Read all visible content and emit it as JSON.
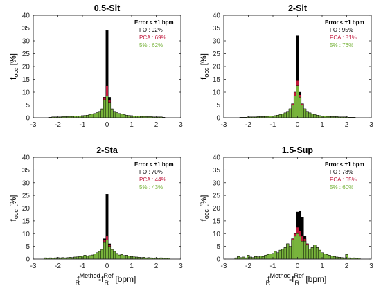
{
  "colors": {
    "FO": "#000000",
    "PCA": "#c0183c",
    "five": "#78b43c",
    "axis": "#262626"
  },
  "legend_header": "Error < ±1 bpm",
  "x_label": {
    "base": "f",
    "sub1": "R",
    "sup1": "Method",
    "sep": "-f",
    "sub2": "R",
    "sup2": "Ref",
    "unit": " [bpm]"
  },
  "y_label": {
    "base": "f",
    "sub": "occ",
    "unit": " [%]"
  },
  "chart_data": [
    {
      "type": "bar",
      "title": "0.5-Sit",
      "xlim": [
        -3,
        3
      ],
      "ylim": [
        0,
        40
      ],
      "xticks": [
        -3,
        -2,
        -1,
        0,
        1,
        2,
        3
      ],
      "yticks": [
        0,
        5,
        10,
        15,
        20,
        25,
        30,
        35,
        40
      ],
      "grid": false,
      "legend_position": "top-right",
      "legend": [
        {
          "name": "FO",
          "text": "FO : 92%"
        },
        {
          "name": "PCA",
          "text": "PCA : 69%"
        },
        {
          "name": "5%",
          "text": "5% : 62%"
        }
      ],
      "bin_width": 0.1,
      "bins": [
        [
          -2.3,
          0.2,
          0.2,
          0.2
        ],
        [
          -2.2,
          0.3,
          0.3,
          0.3
        ],
        [
          -2.1,
          0.3,
          0.3,
          0.3
        ],
        [
          -2.0,
          0.3,
          0.3,
          0.3
        ],
        [
          -1.9,
          0.3,
          0.3,
          0.3
        ],
        [
          -1.8,
          0.4,
          0.4,
          0.4
        ],
        [
          -1.7,
          0.4,
          0.4,
          0.4
        ],
        [
          -1.6,
          0.4,
          0.4,
          0.4
        ],
        [
          -1.5,
          0.5,
          0.5,
          0.5
        ],
        [
          -1.4,
          0.5,
          0.5,
          0.5
        ],
        [
          -1.3,
          0.6,
          0.6,
          0.6
        ],
        [
          -1.2,
          0.6,
          0.6,
          0.6
        ],
        [
          -1.1,
          0.7,
          0.7,
          0.7
        ],
        [
          -1.0,
          0.8,
          0.8,
          0.8
        ],
        [
          -0.9,
          0.9,
          0.9,
          0.9
        ],
        [
          -0.8,
          1.0,
          1.0,
          1.0
        ],
        [
          -0.7,
          1.2,
          1.2,
          1.2
        ],
        [
          -0.6,
          1.4,
          1.4,
          1.4
        ],
        [
          -0.5,
          1.7,
          1.7,
          1.7
        ],
        [
          -0.4,
          2.0,
          2.0,
          2.0
        ],
        [
          -0.3,
          2.5,
          2.5,
          2.5
        ],
        [
          -0.2,
          3.5,
          3.5,
          3.2
        ],
        [
          -0.1,
          8.0,
          8.0,
          7.0
        ],
        [
          0.0,
          34.0,
          12.5,
          8.5
        ],
        [
          0.1,
          8.0,
          7.0,
          6.0
        ],
        [
          0.2,
          3.5,
          3.5,
          3.2
        ],
        [
          0.3,
          2.5,
          2.5,
          2.5
        ],
        [
          0.4,
          2.0,
          2.0,
          2.0
        ],
        [
          0.5,
          1.7,
          1.7,
          1.7
        ],
        [
          0.6,
          1.4,
          1.4,
          1.4
        ],
        [
          0.7,
          1.2,
          1.2,
          1.2
        ],
        [
          0.8,
          1.0,
          1.0,
          1.0
        ],
        [
          0.9,
          0.9,
          0.9,
          0.9
        ],
        [
          1.0,
          0.8,
          0.8,
          0.8
        ],
        [
          1.1,
          0.7,
          0.7,
          0.7
        ],
        [
          1.2,
          0.6,
          0.6,
          0.6
        ],
        [
          1.3,
          0.6,
          0.6,
          0.6
        ],
        [
          1.4,
          0.5,
          0.5,
          0.5
        ],
        [
          1.5,
          0.5,
          0.5,
          0.5
        ],
        [
          1.6,
          0.4,
          0.4,
          0.4
        ],
        [
          1.7,
          0.4,
          0.4,
          0.4
        ],
        [
          1.8,
          0.4,
          0.4,
          0.4
        ],
        [
          1.9,
          0.3,
          0.3,
          0.3
        ],
        [
          2.0,
          0.3,
          0.3,
          0.3
        ],
        [
          2.1,
          0.3,
          0.3,
          0.3
        ],
        [
          2.2,
          0.3,
          0.3,
          0.3
        ],
        [
          2.3,
          0.2,
          0.2,
          0.2
        ]
      ]
    },
    {
      "type": "bar",
      "title": "2-Sit",
      "xlim": [
        -3,
        3
      ],
      "ylim": [
        0,
        40
      ],
      "xticks": [
        -3,
        -2,
        -1,
        0,
        1,
        2,
        3
      ],
      "yticks": [
        0,
        5,
        10,
        15,
        20,
        25,
        30,
        35,
        40
      ],
      "grid": false,
      "legend_position": "top-right",
      "legend": [
        {
          "name": "FO",
          "text": "FO : 95%"
        },
        {
          "name": "PCA",
          "text": "PCA : 81%"
        },
        {
          "name": "5%",
          "text": "5% : 76%"
        }
      ],
      "bin_width": 0.1,
      "bins": [
        [
          -2.3,
          0.2,
          0.2,
          0.2
        ],
        [
          -2.2,
          0.2,
          0.2,
          0.2
        ],
        [
          -2.1,
          0.2,
          0.2,
          0.2
        ],
        [
          -2.0,
          0.3,
          0.3,
          0.3
        ],
        [
          -1.9,
          0.3,
          0.3,
          0.3
        ],
        [
          -1.8,
          0.3,
          0.3,
          0.3
        ],
        [
          -1.7,
          0.3,
          0.3,
          0.3
        ],
        [
          -1.6,
          0.4,
          0.4,
          0.4
        ],
        [
          -1.5,
          0.4,
          0.4,
          0.4
        ],
        [
          -1.4,
          0.4,
          0.4,
          0.4
        ],
        [
          -1.3,
          0.5,
          0.5,
          0.5
        ],
        [
          -1.2,
          0.5,
          0.5,
          0.5
        ],
        [
          -1.1,
          0.6,
          0.6,
          0.6
        ],
        [
          -1.0,
          0.7,
          0.7,
          0.7
        ],
        [
          -0.9,
          0.8,
          0.8,
          0.8
        ],
        [
          -0.8,
          1.0,
          1.0,
          1.0
        ],
        [
          -0.7,
          1.2,
          1.2,
          1.2
        ],
        [
          -0.6,
          1.5,
          1.5,
          1.5
        ],
        [
          -0.5,
          1.9,
          1.9,
          1.9
        ],
        [
          -0.4,
          2.5,
          2.5,
          2.5
        ],
        [
          -0.3,
          3.5,
          3.5,
          3.5
        ],
        [
          -0.2,
          5.5,
          5.5,
          5.0
        ],
        [
          -0.1,
          10.0,
          10.0,
          8.5
        ],
        [
          0.0,
          32.0,
          14.5,
          12.5
        ],
        [
          0.1,
          10.0,
          9.0,
          8.0
        ],
        [
          0.2,
          5.5,
          5.5,
          5.0
        ],
        [
          0.3,
          3.5,
          3.5,
          3.5
        ],
        [
          0.4,
          2.5,
          2.5,
          2.5
        ],
        [
          0.5,
          1.9,
          1.9,
          1.9
        ],
        [
          0.6,
          1.5,
          1.5,
          1.5
        ],
        [
          0.7,
          1.2,
          1.2,
          1.2
        ],
        [
          0.8,
          1.0,
          1.0,
          1.0
        ],
        [
          0.9,
          0.8,
          0.8,
          0.8
        ],
        [
          1.0,
          0.7,
          0.7,
          0.7
        ],
        [
          1.1,
          0.6,
          0.6,
          0.6
        ],
        [
          1.2,
          0.5,
          0.5,
          0.5
        ],
        [
          1.3,
          0.5,
          0.5,
          0.5
        ],
        [
          1.4,
          0.4,
          0.4,
          0.4
        ],
        [
          1.5,
          0.4,
          0.4,
          0.4
        ],
        [
          1.6,
          0.4,
          0.4,
          0.4
        ],
        [
          1.7,
          0.3,
          0.3,
          0.3
        ],
        [
          1.8,
          0.3,
          0.3,
          0.3
        ],
        [
          1.9,
          0.3,
          0.3,
          0.3
        ],
        [
          2.0,
          0.3,
          0.3,
          0.3
        ],
        [
          2.1,
          0.2,
          0.2,
          0.2
        ],
        [
          2.2,
          0.2,
          0.2,
          0.2
        ],
        [
          2.3,
          0.2,
          0.2,
          0.2
        ]
      ]
    },
    {
      "type": "bar",
      "title": "2-Sta",
      "xlim": [
        -3,
        3
      ],
      "ylim": [
        0,
        40
      ],
      "xticks": [
        -3,
        -2,
        -1,
        0,
        1,
        2,
        3
      ],
      "yticks": [
        0,
        5,
        10,
        15,
        20,
        25,
        30,
        35,
        40
      ],
      "grid": false,
      "legend_position": "top-right",
      "legend": [
        {
          "name": "FO",
          "text": "FO : 70%"
        },
        {
          "name": "PCA",
          "text": "PCA : 44%"
        },
        {
          "name": "5%",
          "text": "5% : 43%"
        }
      ],
      "bin_width": 0.1,
      "bins": [
        [
          -2.5,
          0.5,
          0.5,
          0.5
        ],
        [
          -2.4,
          0.4,
          0.4,
          0.4
        ],
        [
          -2.3,
          0.5,
          0.5,
          0.5
        ],
        [
          -2.2,
          0.4,
          0.4,
          0.4
        ],
        [
          -2.1,
          0.5,
          0.5,
          0.5
        ],
        [
          -2.0,
          0.6,
          0.6,
          0.6
        ],
        [
          -1.9,
          0.5,
          0.5,
          0.5
        ],
        [
          -1.8,
          0.6,
          0.6,
          0.6
        ],
        [
          -1.7,
          0.5,
          0.5,
          0.5
        ],
        [
          -1.6,
          0.6,
          0.6,
          0.6
        ],
        [
          -1.5,
          0.7,
          0.7,
          0.7
        ],
        [
          -1.4,
          0.6,
          0.6,
          0.6
        ],
        [
          -1.3,
          0.8,
          0.8,
          0.8
        ],
        [
          -1.2,
          0.9,
          0.9,
          0.9
        ],
        [
          -1.1,
          1.0,
          1.0,
          1.0
        ],
        [
          -1.0,
          1.2,
          1.2,
          1.2
        ],
        [
          -0.9,
          1.5,
          1.5,
          1.5
        ],
        [
          -0.8,
          1.2,
          1.2,
          1.2
        ],
        [
          -0.7,
          1.4,
          1.4,
          1.4
        ],
        [
          -0.6,
          1.6,
          1.6,
          1.6
        ],
        [
          -0.5,
          2.0,
          2.0,
          2.0
        ],
        [
          -0.4,
          2.5,
          2.5,
          2.5
        ],
        [
          -0.3,
          3.0,
          3.0,
          3.0
        ],
        [
          -0.2,
          4.0,
          4.0,
          3.8
        ],
        [
          -0.1,
          8.0,
          7.5,
          6.5
        ],
        [
          0.0,
          25.5,
          9.0,
          7.5
        ],
        [
          0.1,
          6.0,
          5.5,
          5.0
        ],
        [
          0.2,
          4.0,
          4.0,
          3.8
        ],
        [
          0.3,
          3.0,
          3.0,
          3.0
        ],
        [
          0.4,
          2.2,
          2.2,
          2.2
        ],
        [
          0.5,
          1.6,
          1.6,
          1.6
        ],
        [
          0.6,
          1.8,
          1.8,
          1.8
        ],
        [
          0.7,
          1.4,
          1.4,
          1.4
        ],
        [
          0.8,
          1.5,
          1.5,
          1.5
        ],
        [
          0.9,
          1.2,
          1.2,
          1.2
        ],
        [
          1.0,
          1.0,
          1.0,
          1.0
        ],
        [
          1.1,
          0.9,
          0.9,
          0.9
        ],
        [
          1.2,
          0.8,
          0.8,
          0.8
        ],
        [
          1.3,
          0.7,
          0.7,
          0.7
        ],
        [
          1.4,
          0.6,
          0.6,
          0.6
        ],
        [
          1.5,
          0.7,
          0.7,
          0.7
        ],
        [
          1.6,
          0.5,
          0.5,
          0.5
        ],
        [
          1.7,
          0.6,
          0.6,
          0.6
        ],
        [
          1.8,
          0.5,
          0.5,
          0.5
        ],
        [
          1.9,
          0.4,
          0.4,
          0.4
        ],
        [
          2.0,
          0.5,
          0.5,
          0.5
        ],
        [
          2.1,
          0.4,
          0.4,
          0.4
        ],
        [
          2.2,
          0.5,
          0.5,
          0.5
        ],
        [
          2.3,
          0.4,
          0.4,
          0.4
        ],
        [
          2.4,
          0.3,
          0.3,
          0.3
        ],
        [
          2.5,
          0.4,
          0.4,
          0.4
        ]
      ]
    },
    {
      "type": "bar",
      "title": "1.5-Sup",
      "xlim": [
        -3,
        3
      ],
      "ylim": [
        0,
        40
      ],
      "xticks": [
        -3,
        -2,
        -1,
        0,
        1,
        2,
        3
      ],
      "yticks": [
        0,
        5,
        10,
        15,
        20,
        25,
        30,
        35,
        40
      ],
      "grid": false,
      "legend_position": "top-right",
      "legend": [
        {
          "name": "FO",
          "text": "FO : 78%"
        },
        {
          "name": "PCA",
          "text": "PCA : 65%"
        },
        {
          "name": "5%",
          "text": "5% : 60%"
        }
      ],
      "bin_width": 0.1,
      "bins": [
        [
          -2.5,
          0.5,
          0.5,
          0.5
        ],
        [
          -2.4,
          1.0,
          1.0,
          1.0
        ],
        [
          -2.3,
          0.6,
          0.6,
          0.6
        ],
        [
          -2.2,
          0.8,
          0.8,
          0.8
        ],
        [
          -2.1,
          0.5,
          0.5,
          0.5
        ],
        [
          -2.0,
          1.5,
          1.5,
          1.5
        ],
        [
          -1.9,
          0.8,
          0.8,
          0.8
        ],
        [
          -1.8,
          0.6,
          0.6,
          0.6
        ],
        [
          -1.7,
          1.0,
          1.0,
          1.0
        ],
        [
          -1.6,
          0.9,
          0.9,
          0.9
        ],
        [
          -1.5,
          1.2,
          1.2,
          1.2
        ],
        [
          -1.4,
          1.0,
          1.0,
          1.0
        ],
        [
          -1.3,
          1.5,
          1.5,
          1.5
        ],
        [
          -1.2,
          1.8,
          1.8,
          1.8
        ],
        [
          -1.1,
          2.0,
          2.0,
          2.0
        ],
        [
          -1.0,
          2.2,
          2.2,
          2.2
        ],
        [
          -0.9,
          3.0,
          3.0,
          3.0
        ],
        [
          -0.8,
          2.5,
          2.5,
          2.5
        ],
        [
          -0.7,
          3.5,
          3.5,
          3.5
        ],
        [
          -0.6,
          4.0,
          4.0,
          4.0
        ],
        [
          -0.5,
          4.5,
          4.5,
          4.5
        ],
        [
          -0.4,
          6.0,
          6.0,
          6.0
        ],
        [
          -0.3,
          5.0,
          5.0,
          5.0
        ],
        [
          -0.2,
          8.0,
          8.0,
          7.5
        ],
        [
          -0.1,
          10.0,
          10.0,
          9.0
        ],
        [
          0.0,
          18.5,
          12.5,
          10.0
        ],
        [
          0.1,
          19.0,
          11.0,
          9.0
        ],
        [
          0.2,
          16.5,
          9.0,
          7.0
        ],
        [
          0.3,
          9.0,
          8.0,
          7.0
        ],
        [
          0.4,
          6.0,
          6.0,
          5.5
        ],
        [
          0.5,
          4.0,
          4.0,
          4.0
        ],
        [
          0.6,
          4.5,
          4.5,
          4.5
        ],
        [
          0.7,
          5.5,
          5.5,
          5.5
        ],
        [
          0.8,
          4.5,
          4.5,
          4.5
        ],
        [
          0.9,
          3.5,
          3.5,
          3.5
        ],
        [
          1.0,
          2.5,
          2.5,
          2.5
        ],
        [
          1.1,
          2.0,
          2.0,
          2.0
        ],
        [
          1.2,
          1.8,
          1.8,
          1.8
        ],
        [
          1.3,
          1.5,
          1.5,
          1.5
        ],
        [
          1.4,
          1.2,
          1.2,
          1.2
        ],
        [
          1.5,
          1.0,
          1.0,
          1.0
        ],
        [
          1.6,
          0.8,
          0.8,
          0.8
        ],
        [
          1.7,
          0.7,
          0.7,
          0.7
        ],
        [
          1.8,
          0.6,
          0.6,
          0.6
        ],
        [
          1.9,
          0.5,
          0.5,
          0.5
        ],
        [
          2.0,
          1.8,
          1.8,
          1.8
        ],
        [
          2.1,
          0.5,
          0.5,
          0.5
        ],
        [
          2.2,
          0.4,
          0.4,
          0.4
        ],
        [
          2.3,
          0.5,
          0.5,
          0.5
        ],
        [
          2.4,
          0.3,
          0.3,
          0.3
        ],
        [
          2.5,
          0.4,
          0.4,
          0.4
        ]
      ]
    }
  ]
}
